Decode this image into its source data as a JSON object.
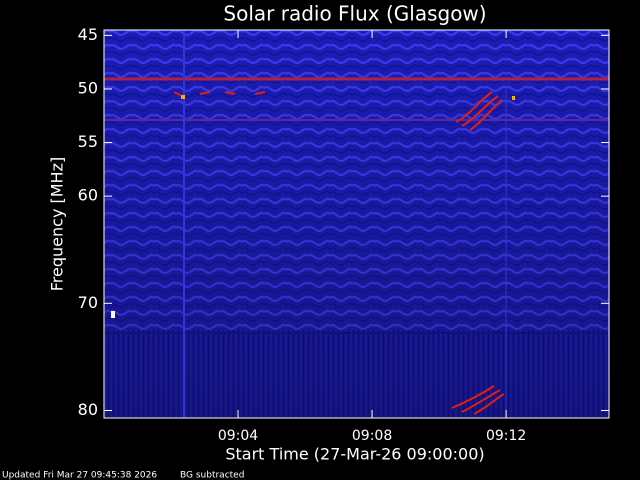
{
  "chart_data": {
    "type": "spectrogram",
    "title": "Solar radio Flux (Glasgow)",
    "y_label": "Frequency [MHz]",
    "x_label": "Start Time (27-Mar-26 09:00:00)",
    "footer": [
      "Updated Fri Mar 27 09:45:38 2026",
      "BG subtracted"
    ],
    "xlim": [
      0,
      15.07
    ],
    "xticks": [
      {
        "value": 4,
        "label": "09:04"
      },
      {
        "value": 8,
        "label": "09:08"
      },
      {
        "value": 12,
        "label": "09:12"
      }
    ],
    "ylim": [
      80.7,
      44.5
    ],
    "yticks": [
      45,
      50,
      55,
      60,
      70,
      80
    ]
  }
}
